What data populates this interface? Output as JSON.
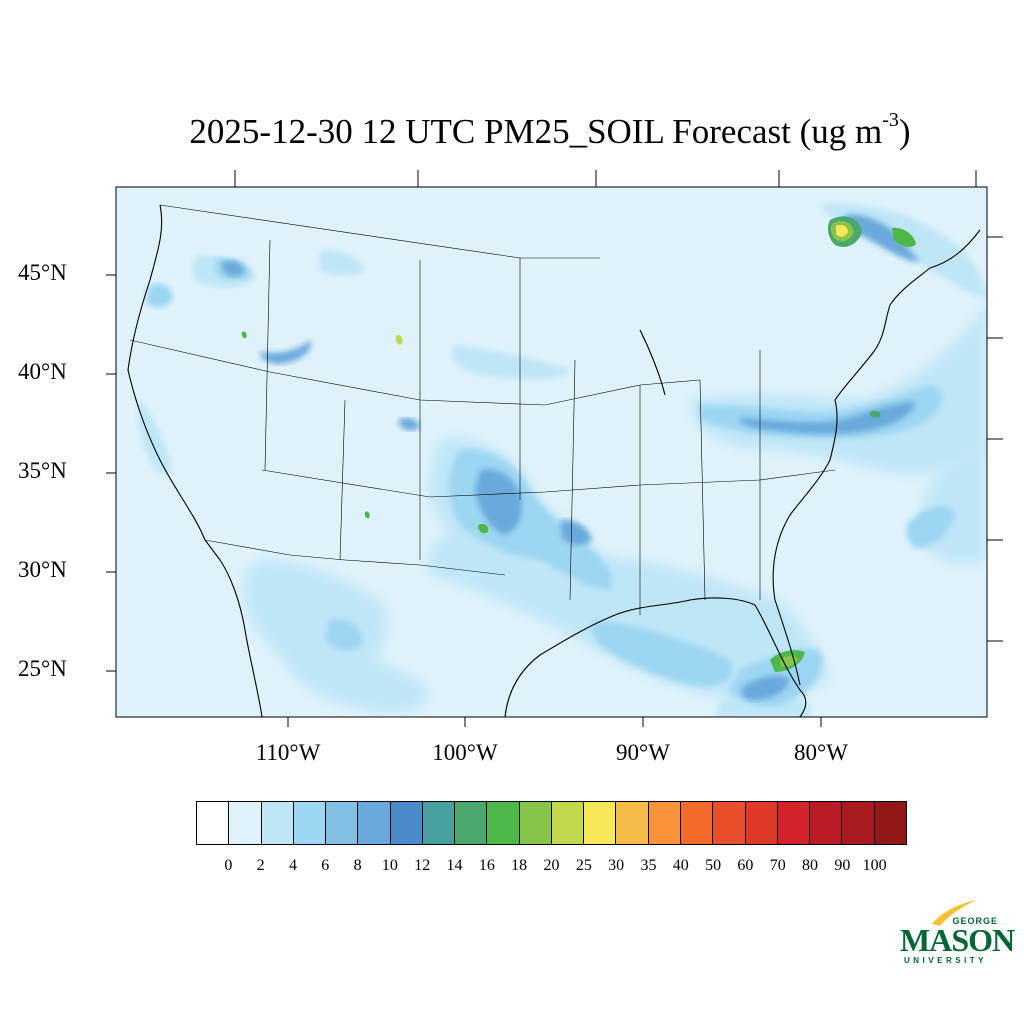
{
  "title": {
    "main": "2025-12-30 12 UTC PM25_SOIL Forecast (ug m",
    "superscript": "-3",
    "close": ")"
  },
  "map": {
    "ocean_color": "#dff2fa",
    "land_color": "#dff2fa",
    "outline_color": "#000000",
    "lat_labels": [
      "45°N",
      "40°N",
      "35°N",
      "30°N",
      "25°N"
    ],
    "lon_labels": [
      "110°W",
      "100°W",
      "90°W",
      "80°W"
    ]
  },
  "colorbar": {
    "colors": [
      "#ffffff",
      "#dff2fa",
      "#bfe6f7",
      "#9dd6f2",
      "#82c0e6",
      "#6aa9dc",
      "#4a8ccb",
      "#47a0a0",
      "#4aa86c",
      "#4db848",
      "#86c44a",
      "#c2d84e",
      "#f7e85a",
      "#f7bc48",
      "#f79439",
      "#f36a2a",
      "#ea4d2a",
      "#df3828",
      "#d2232a",
      "#bb1c24",
      "#a81a20",
      "#921818"
    ],
    "ticks": [
      "0",
      "2",
      "4",
      "6",
      "8",
      "10",
      "12",
      "14",
      "16",
      "18",
      "20",
      "25",
      "30",
      "35",
      "40",
      "50",
      "60",
      "70",
      "80",
      "90",
      "100"
    ]
  },
  "logo": {
    "line1": "GEORGE",
    "line2": "MASON",
    "line3": "UNIVERSITY",
    "brand_color": "#006633",
    "accent_color": "#f2c230"
  }
}
